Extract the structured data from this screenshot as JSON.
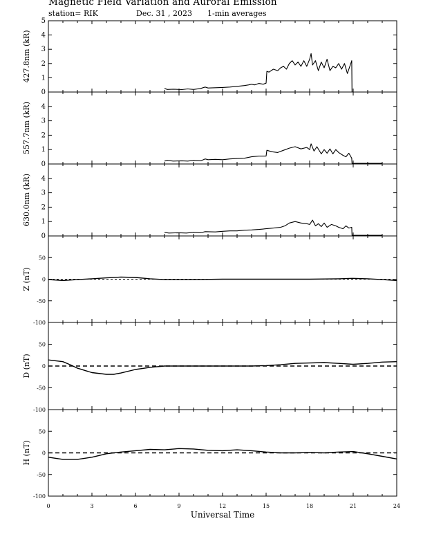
{
  "header": {
    "title": "Magnetic Field Variation and Auroral Emission",
    "station": "station= RIK",
    "date": "Dec. 31 , 2023",
    "averaging": "1-min averages"
  },
  "chart_data": [
    {
      "type": "line",
      "ylabel": "427.8nm (kR)",
      "ylim": [
        0,
        5
      ],
      "yticks": [
        0,
        1,
        2,
        3,
        4,
        5
      ],
      "xlim": [
        0,
        24
      ],
      "series": [
        {
          "values": [
            [
              8.0,
              0.25
            ],
            [
              8.2,
              0.18
            ],
            [
              8.6,
              0.2
            ],
            [
              9.2,
              0.17
            ],
            [
              9.6,
              0.22
            ],
            [
              10.0,
              0.18
            ],
            [
              10.5,
              0.25
            ],
            [
              10.8,
              0.35
            ],
            [
              11.0,
              0.28
            ],
            [
              11.5,
              0.3
            ],
            [
              12.0,
              0.32
            ],
            [
              12.5,
              0.35
            ],
            [
              13.0,
              0.4
            ],
            [
              13.5,
              0.45
            ],
            [
              13.8,
              0.5
            ],
            [
              14.0,
              0.55
            ],
            [
              14.2,
              0.5
            ],
            [
              14.5,
              0.6
            ],
            [
              14.8,
              0.55
            ],
            [
              15.0,
              0.62
            ],
            [
              15.05,
              1.45
            ],
            [
              15.2,
              1.4
            ],
            [
              15.5,
              1.6
            ],
            [
              15.8,
              1.5
            ],
            [
              16.0,
              1.7
            ],
            [
              16.2,
              1.8
            ],
            [
              16.4,
              1.6
            ],
            [
              16.6,
              2.0
            ],
            [
              16.8,
              2.2
            ],
            [
              17.0,
              1.9
            ],
            [
              17.2,
              2.1
            ],
            [
              17.4,
              1.8
            ],
            [
              17.6,
              2.2
            ],
            [
              17.8,
              1.8
            ],
            [
              18.0,
              2.3
            ],
            [
              18.1,
              2.7
            ],
            [
              18.2,
              1.9
            ],
            [
              18.4,
              2.2
            ],
            [
              18.6,
              1.5
            ],
            [
              18.8,
              2.1
            ],
            [
              19.0,
              1.7
            ],
            [
              19.2,
              2.3
            ],
            [
              19.4,
              1.5
            ],
            [
              19.6,
              1.8
            ],
            [
              19.8,
              1.7
            ],
            [
              20.0,
              2.0
            ],
            [
              20.2,
              1.6
            ],
            [
              20.4,
              2.0
            ],
            [
              20.6,
              1.3
            ],
            [
              20.8,
              1.9
            ],
            [
              20.9,
              2.2
            ],
            [
              20.92,
              0.0
            ]
          ]
        }
      ]
    },
    {
      "type": "line",
      "ylabel": "557.7nm (kR)",
      "ylim": [
        0,
        5
      ],
      "yticks": [
        0,
        1,
        2,
        3,
        4
      ],
      "xlim": [
        0,
        24
      ],
      "series": [
        {
          "values": [
            [
              8.0,
              0.2
            ],
            [
              8.2,
              0.25
            ],
            [
              8.6,
              0.2
            ],
            [
              9.2,
              0.22
            ],
            [
              9.6,
              0.2
            ],
            [
              10.0,
              0.25
            ],
            [
              10.5,
              0.22
            ],
            [
              10.8,
              0.35
            ],
            [
              11.0,
              0.3
            ],
            [
              11.5,
              0.32
            ],
            [
              12.0,
              0.3
            ],
            [
              12.5,
              0.35
            ],
            [
              13.0,
              0.38
            ],
            [
              13.5,
              0.4
            ],
            [
              14.0,
              0.5
            ],
            [
              14.5,
              0.55
            ],
            [
              15.0,
              0.55
            ],
            [
              15.05,
              0.95
            ],
            [
              15.4,
              0.85
            ],
            [
              15.8,
              0.8
            ],
            [
              16.2,
              0.95
            ],
            [
              16.6,
              1.1
            ],
            [
              17.0,
              1.2
            ],
            [
              17.4,
              1.05
            ],
            [
              17.8,
              1.15
            ],
            [
              18.0,
              1.0
            ],
            [
              18.1,
              1.4
            ],
            [
              18.3,
              0.9
            ],
            [
              18.5,
              1.2
            ],
            [
              18.8,
              0.7
            ],
            [
              19.0,
              1.0
            ],
            [
              19.2,
              0.75
            ],
            [
              19.4,
              1.05
            ],
            [
              19.6,
              0.7
            ],
            [
              19.8,
              1.0
            ],
            [
              20.0,
              0.8
            ],
            [
              20.3,
              0.6
            ],
            [
              20.5,
              0.5
            ],
            [
              20.7,
              0.75
            ],
            [
              20.9,
              0.4
            ],
            [
              20.92,
              0.05
            ],
            [
              23.0,
              0.05
            ]
          ]
        }
      ]
    },
    {
      "type": "line",
      "ylabel": "630.0nm (kR)",
      "ylim": [
        0,
        5
      ],
      "yticks": [
        0,
        1,
        2,
        3,
        4
      ],
      "xlim": [
        0,
        24
      ],
      "series": [
        {
          "values": [
            [
              8.0,
              0.25
            ],
            [
              8.3,
              0.2
            ],
            [
              9.0,
              0.22
            ],
            [
              9.5,
              0.2
            ],
            [
              10.0,
              0.25
            ],
            [
              10.5,
              0.22
            ],
            [
              10.8,
              0.3
            ],
            [
              11.5,
              0.28
            ],
            [
              12.0,
              0.32
            ],
            [
              12.5,
              0.35
            ],
            [
              13.0,
              0.35
            ],
            [
              13.5,
              0.4
            ],
            [
              14.0,
              0.42
            ],
            [
              14.5,
              0.45
            ],
            [
              15.0,
              0.5
            ],
            [
              15.5,
              0.55
            ],
            [
              16.0,
              0.6
            ],
            [
              16.3,
              0.7
            ],
            [
              16.6,
              0.9
            ],
            [
              17.0,
              1.0
            ],
            [
              17.4,
              0.9
            ],
            [
              17.8,
              0.85
            ],
            [
              18.0,
              0.8
            ],
            [
              18.2,
              1.1
            ],
            [
              18.4,
              0.7
            ],
            [
              18.6,
              0.85
            ],
            [
              18.8,
              0.65
            ],
            [
              19.0,
              0.9
            ],
            [
              19.2,
              0.6
            ],
            [
              19.5,
              0.8
            ],
            [
              19.8,
              0.7
            ],
            [
              20.0,
              0.6
            ],
            [
              20.3,
              0.5
            ],
            [
              20.5,
              0.7
            ],
            [
              20.7,
              0.55
            ],
            [
              20.9,
              0.6
            ],
            [
              20.92,
              0.05
            ],
            [
              23.0,
              0.05
            ]
          ]
        }
      ]
    },
    {
      "type": "line",
      "ylabel": "Z (nT)",
      "ylim": [
        -100,
        100
      ],
      "yticks": [
        -100,
        -50,
        0,
        50
      ],
      "xlim": [
        0,
        24
      ],
      "series": [
        {
          "values": [
            [
              0,
              -1
            ],
            [
              1,
              -3
            ],
            [
              2,
              -1
            ],
            [
              3,
              1
            ],
            [
              4,
              3
            ],
            [
              5,
              5
            ],
            [
              6,
              4
            ],
            [
              7,
              1
            ],
            [
              8,
              -1
            ],
            [
              10,
              -1
            ],
            [
              12,
              0
            ],
            [
              14,
              0
            ],
            [
              16,
              0
            ],
            [
              18,
              0
            ],
            [
              20,
              1
            ],
            [
              21,
              2
            ],
            [
              22,
              1
            ],
            [
              23,
              -1
            ],
            [
              24,
              -3
            ]
          ]
        }
      ]
    },
    {
      "type": "line",
      "ylabel": "D (nT)",
      "ylim": [
        -100,
        100
      ],
      "yticks": [
        -100,
        -50,
        0,
        50
      ],
      "xlim": [
        0,
        24
      ],
      "series": [
        {
          "values": [
            [
              0,
              14
            ],
            [
              1,
              10
            ],
            [
              1.5,
              3
            ],
            [
              2,
              -5
            ],
            [
              3,
              -15
            ],
            [
              4,
              -19
            ],
            [
              4.5,
              -19
            ],
            [
              5,
              -16
            ],
            [
              6,
              -8
            ],
            [
              7,
              -3
            ],
            [
              8,
              0
            ],
            [
              10,
              0
            ],
            [
              12,
              0
            ],
            [
              14,
              0
            ],
            [
              15,
              1
            ],
            [
              16,
              3
            ],
            [
              17,
              6
            ],
            [
              18,
              7
            ],
            [
              19,
              8
            ],
            [
              20,
              6
            ],
            [
              21,
              4
            ],
            [
              22,
              6
            ],
            [
              23,
              9
            ],
            [
              24,
              10
            ]
          ]
        }
      ]
    },
    {
      "type": "line",
      "ylabel": "H (nT)",
      "ylim": [
        -100,
        100
      ],
      "yticks": [
        -100,
        -50,
        0,
        50
      ],
      "xlim": [
        0,
        24
      ],
      "series": [
        {
          "values": [
            [
              0,
              -10
            ],
            [
              1,
              -15
            ],
            [
              2,
              -15
            ],
            [
              3,
              -10
            ],
            [
              4,
              -2
            ],
            [
              5,
              2
            ],
            [
              6,
              5
            ],
            [
              7,
              8
            ],
            [
              8,
              7
            ],
            [
              9,
              10
            ],
            [
              10,
              9
            ],
            [
              11,
              6
            ],
            [
              12,
              5
            ],
            [
              13,
              7
            ],
            [
              14,
              5
            ],
            [
              15,
              2
            ],
            [
              16,
              0
            ],
            [
              17,
              0
            ],
            [
              18,
              1
            ],
            [
              19,
              0
            ],
            [
              20,
              2
            ],
            [
              21,
              3
            ],
            [
              22,
              -2
            ],
            [
              23,
              -8
            ],
            [
              24,
              -14
            ]
          ]
        }
      ]
    }
  ],
  "xaxis": {
    "label": "Universal Time",
    "ticks": [
      0,
      3,
      6,
      9,
      12,
      15,
      18,
      21,
      24
    ],
    "range": [
      0,
      24
    ]
  }
}
